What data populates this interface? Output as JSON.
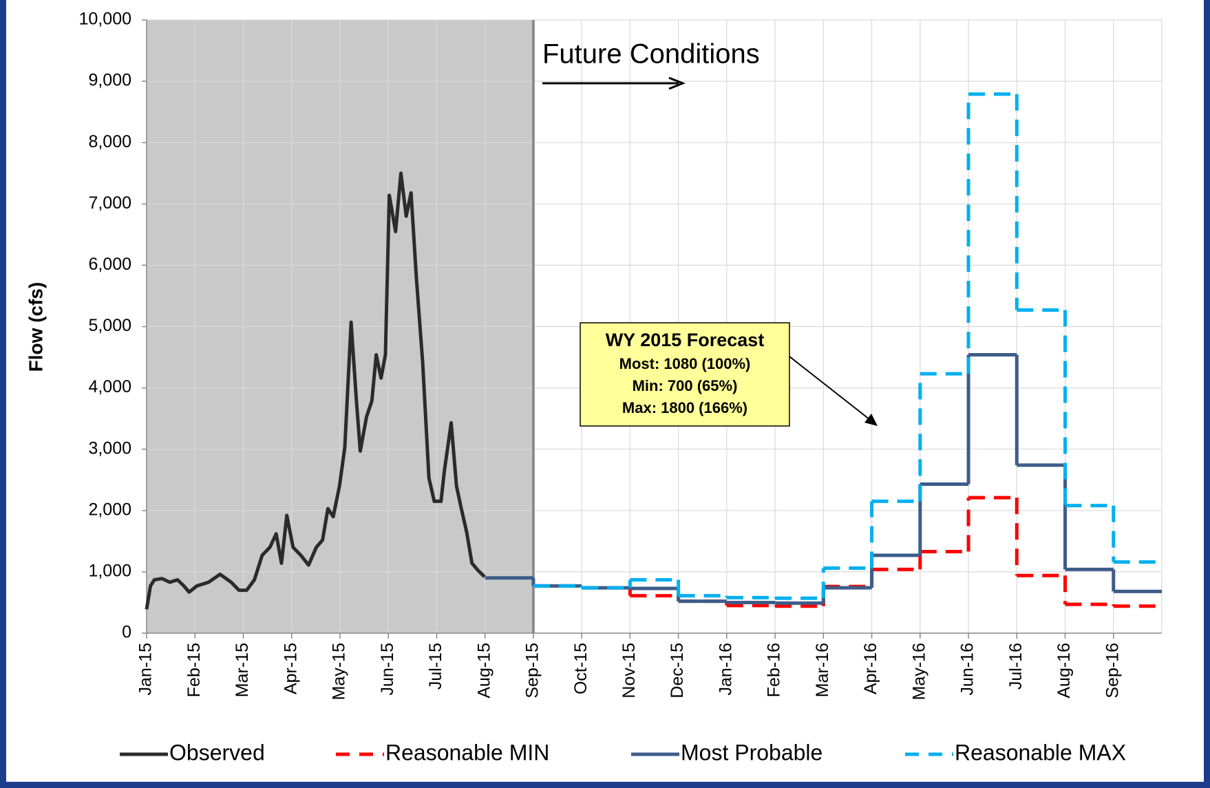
{
  "chart_data": {
    "type": "line",
    "y_axis_label": "Flow (cfs)",
    "xlim": [
      0,
      21
    ],
    "xticks": [
      {
        "value": 0,
        "label": "Jan-15"
      },
      {
        "value": 1,
        "label": "Feb-15"
      },
      {
        "value": 2,
        "label": "Mar-15"
      },
      {
        "value": 3,
        "label": "Apr-15"
      },
      {
        "value": 4,
        "label": "May-15"
      },
      {
        "value": 5,
        "label": "Jun-15"
      },
      {
        "value": 6,
        "label": "Jul-15"
      },
      {
        "value": 7,
        "label": "Aug-15"
      },
      {
        "value": 8,
        "label": "Sep-15"
      },
      {
        "value": 9,
        "label": "Oct-15"
      },
      {
        "value": 10,
        "label": "Nov-15"
      },
      {
        "value": 11,
        "label": "Dec-15"
      },
      {
        "value": 12,
        "label": "Jan-16"
      },
      {
        "value": 13,
        "label": "Feb-16"
      },
      {
        "value": 14,
        "label": "Mar-16"
      },
      {
        "value": 15,
        "label": "Apr-16"
      },
      {
        "value": 16,
        "label": "May-16"
      },
      {
        "value": 17,
        "label": "Jun-16"
      },
      {
        "value": 18,
        "label": "Jul-16"
      },
      {
        "value": 19,
        "label": "Aug-16"
      },
      {
        "value": 20,
        "label": "Sep-16"
      }
    ],
    "ylim": [
      0,
      10000
    ],
    "yticks": [
      0,
      {
        "value": 1000,
        "label": "1,000"
      },
      {
        "value": 2000,
        "label": "2,000"
      },
      {
        "value": 3000,
        "label": "3,000"
      },
      {
        "value": 4000,
        "label": "4,000"
      },
      {
        "value": 5000,
        "label": "5,000"
      },
      {
        "value": 6000,
        "label": "6,000"
      },
      {
        "value": 7000,
        "label": "7,000"
      },
      {
        "value": 8000,
        "label": "8,000"
      },
      {
        "value": 9000,
        "label": "9,000"
      },
      {
        "value": 10000,
        "label": "10,000"
      }
    ],
    "grid": true,
    "shade_xlim": [
      0,
      8
    ],
    "legend": "bottom",
    "series": [
      {
        "name": "Observed",
        "color": "#2b2b2b",
        "dash": false,
        "step": false,
        "x": [
          0,
          0.08,
          0.16,
          0.32,
          0.48,
          0.64,
          0.77,
          0.88,
          1.04,
          1.28,
          1.52,
          1.75,
          1.91,
          2.07,
          2.23,
          2.39,
          2.55,
          2.68,
          2.79,
          2.9,
          3.03,
          3.19,
          3.35,
          3.51,
          3.64,
          3.75,
          3.86,
          3.99,
          4.1,
          4.23,
          4.34,
          4.42,
          4.55,
          4.66,
          4.75,
          4.85,
          4.94,
          5.02,
          5.15,
          5.26,
          5.37,
          5.47,
          5.58,
          5.71,
          5.84,
          5.95,
          6.09,
          6.16,
          6.3,
          6.41,
          6.51,
          6.62,
          6.73,
          6.86,
          6.99
        ],
        "values": [
          390,
          770,
          870,
          890,
          830,
          870,
          770,
          670,
          770,
          830,
          960,
          830,
          700,
          700,
          870,
          1270,
          1400,
          1620,
          1140,
          1920,
          1400,
          1270,
          1110,
          1400,
          1520,
          2030,
          1900,
          2400,
          3030,
          5070,
          3790,
          2970,
          3530,
          3790,
          4540,
          4160,
          4540,
          7140,
          6550,
          7500,
          6800,
          7180,
          5800,
          4420,
          2530,
          2150,
          2150,
          2650,
          3430,
          2400,
          2030,
          1650,
          1140,
          1020,
          920
        ]
      },
      {
        "name": "Reasonable MIN",
        "color": "#ff0000",
        "dash": true,
        "step": true,
        "x": [
          8,
          9,
          10,
          11,
          12,
          13,
          14,
          15,
          16,
          17,
          18,
          19,
          20
        ],
        "values": [
          770,
          740,
          610,
          520,
          450,
          440,
          760,
          1040,
          1330,
          2210,
          940,
          470,
          440
        ]
      },
      {
        "name": "Most Probable",
        "color": "#3d5d89",
        "dash": false,
        "step": true,
        "x": [
          7,
          8,
          9,
          10,
          11,
          12,
          13,
          14,
          15,
          16,
          17,
          18,
          19,
          20
        ],
        "values": [
          900,
          770,
          740,
          730,
          520,
          500,
          490,
          740,
          1270,
          2430,
          4540,
          2740,
          1040,
          680
        ]
      },
      {
        "name": "Reasonable MAX",
        "color": "#00b0f0",
        "dash": true,
        "step": true,
        "x": [
          8,
          9,
          10,
          11,
          12,
          13,
          14,
          15,
          16,
          17,
          18,
          19,
          20
        ],
        "values": [
          770,
          740,
          870,
          610,
          580,
          570,
          1060,
          2150,
          4230,
          8790,
          5270,
          2080,
          1160
        ]
      }
    ],
    "annotations": {
      "future": "Future Conditions",
      "forecast_box": [
        "WY 2015 Forecast",
        "Most: 1080 (100%)",
        "Min: 700 (65%)",
        "Max: 1800 (166%)"
      ]
    }
  }
}
